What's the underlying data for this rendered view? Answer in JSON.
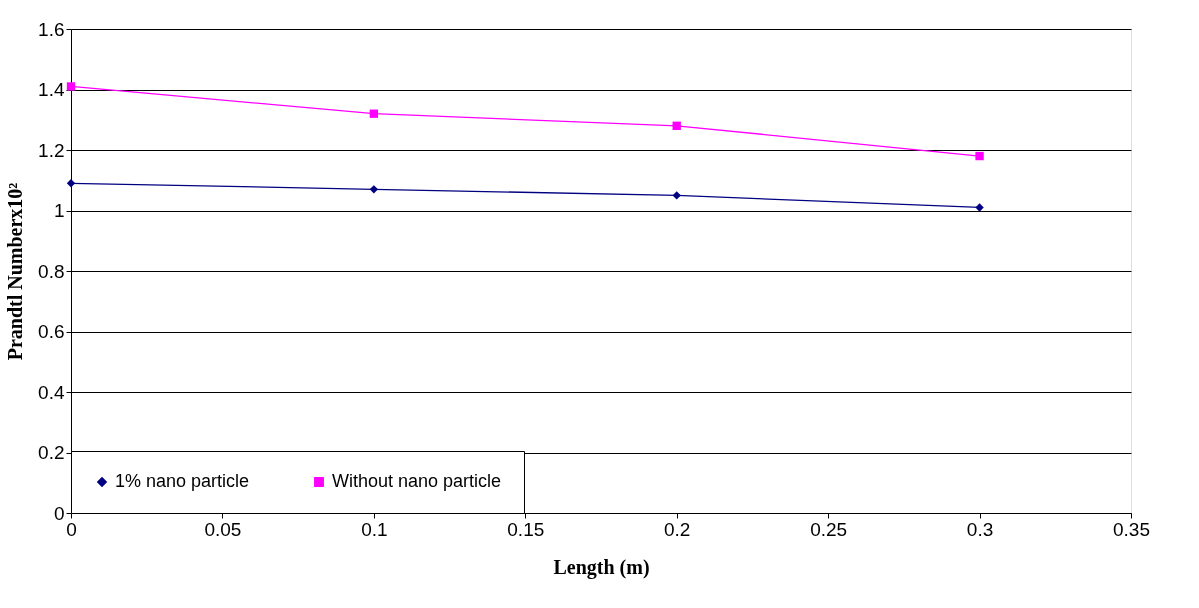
{
  "chart_data": {
    "type": "line",
    "xlabel": "Length (m)",
    "ylabel": "Prandtl Numberx10²",
    "x": [
      0,
      0.1,
      0.2,
      0.3
    ],
    "series": [
      {
        "name": "1% nano particle",
        "color": "#000080",
        "marker": "diamond",
        "values": [
          1.09,
          1.07,
          1.05,
          1.01
        ]
      },
      {
        "name": "Without nano particle",
        "color": "#ff00ff",
        "marker": "square",
        "values": [
          1.41,
          1.32,
          1.28,
          1.18
        ]
      }
    ],
    "xlim": [
      0,
      0.35
    ],
    "xticks": [
      0,
      0.05,
      0.1,
      0.15,
      0.2,
      0.25,
      0.3,
      0.35
    ],
    "ylim": [
      0,
      1.6
    ],
    "yticks": [
      0,
      0.2,
      0.4,
      0.6,
      0.8,
      1,
      1.2,
      1.4,
      1.6
    ],
    "grid": "y",
    "legend": "bottom left",
    "line_style": "solid"
  }
}
